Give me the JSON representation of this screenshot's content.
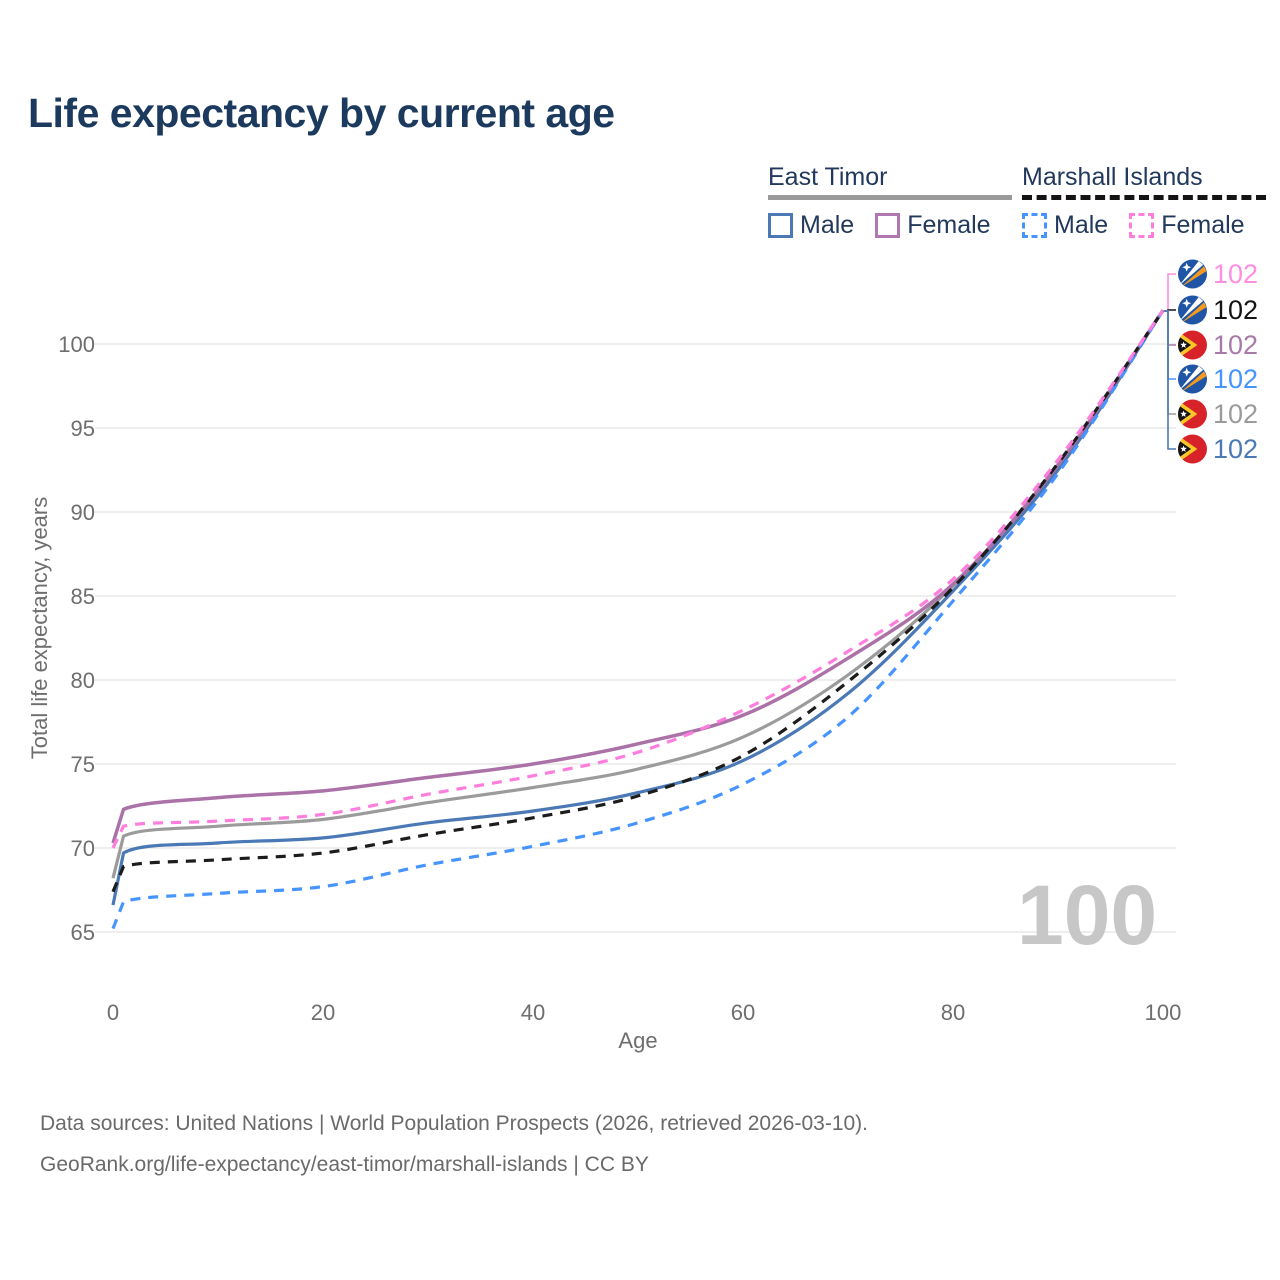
{
  "title": "Life expectancy by current age",
  "legend": {
    "groups": [
      {
        "name": "East Timor",
        "line_style": "solid",
        "line_color": "#9a9a9a",
        "items": [
          {
            "label": "Male",
            "color": "#4a79b5",
            "style": "solid"
          },
          {
            "label": "Female",
            "color": "#b078b0",
            "style": "solid"
          }
        ]
      },
      {
        "name": "Marshall Islands",
        "line_style": "dashed",
        "line_color": "#141414",
        "items": [
          {
            "label": "Male",
            "color": "#4594ff",
            "style": "dashed"
          },
          {
            "label": "Female",
            "color": "#ff7edd",
            "style": "dashed"
          }
        ]
      }
    ]
  },
  "chart_data": {
    "type": "line",
    "title": "Life expectancy by current age",
    "xlabel": "Age",
    "ylabel": "Total life expectancy, years",
    "x_ticks": [
      0,
      20,
      40,
      60,
      80,
      100
    ],
    "y_ticks": [
      65,
      70,
      75,
      80,
      85,
      90,
      95,
      100
    ],
    "xlim": [
      0,
      100
    ],
    "ylim": [
      63,
      103
    ],
    "grid": "horizontal",
    "legend_position": "top-right",
    "watermark": "100",
    "x": [
      0,
      1,
      10,
      20,
      30,
      40,
      50,
      60,
      70,
      80,
      90,
      100
    ],
    "series": [
      {
        "name": "East Timor Total",
        "country": "East Timor",
        "sex": "total",
        "color": "#9b9b9b",
        "dash": "solid",
        "width": 3.2,
        "values": [
          68.2,
          70.7,
          71.3,
          71.7,
          72.7,
          73.6,
          74.7,
          76.6,
          80.3,
          85.6,
          92.7,
          102
        ]
      },
      {
        "name": "East Timor Male",
        "country": "East Timor",
        "sex": "male",
        "color": "#4a79b5",
        "dash": "solid",
        "width": 3.2,
        "values": [
          66.6,
          69.7,
          70.3,
          70.6,
          71.5,
          72.2,
          73.3,
          75.2,
          79.2,
          85.3,
          92.5,
          102
        ]
      },
      {
        "name": "East Timor Female",
        "country": "East Timor",
        "sex": "female",
        "color": "#ab72a8",
        "dash": "solid",
        "width": 3.5,
        "values": [
          70.3,
          72.3,
          73.0,
          73.4,
          74.2,
          75.0,
          76.2,
          77.9,
          81.3,
          85.7,
          92.8,
          102
        ]
      },
      {
        "name": "Marshall Islands Male",
        "country": "Marshall Islands",
        "sex": "male",
        "color": "#4594ff",
        "dash": "dashed",
        "width": 3.2,
        "values": [
          65.2,
          66.8,
          67.3,
          67.7,
          69.0,
          70.1,
          71.5,
          73.8,
          77.8,
          84.7,
          92.3,
          102
        ]
      },
      {
        "name": "Marshall Islands Total",
        "country": "Marshall Islands",
        "sex": "total",
        "color": "#1c1c1c",
        "dash": "dashed",
        "width": 3.2,
        "values": [
          67.4,
          68.9,
          69.3,
          69.7,
          70.8,
          71.8,
          73.1,
          75.5,
          79.9,
          85.5,
          92.9,
          102
        ]
      },
      {
        "name": "Marshall Islands Female",
        "country": "Marshall Islands",
        "sex": "female",
        "color": "#ff7edd",
        "dash": "dashed",
        "width": 3.2,
        "values": [
          70.0,
          71.3,
          71.6,
          72.0,
          73.2,
          74.3,
          75.7,
          78.2,
          81.7,
          86.0,
          93.1,
          102
        ]
      }
    ],
    "end_labels": [
      {
        "flag": "marshall-islands",
        "series": "Marshall Islands Female",
        "value": "102",
        "color": "#ff8ee0"
      },
      {
        "flag": "marshall-islands",
        "series": "Marshall Islands Total",
        "value": "102",
        "color": "#141414"
      },
      {
        "flag": "east-timor",
        "series": "East Timor Female",
        "value": "102",
        "color": "#a87aa8"
      },
      {
        "flag": "marshall-islands",
        "series": "Marshall Islands Male",
        "value": "102",
        "color": "#4594ff"
      },
      {
        "flag": "east-timor",
        "series": "East Timor Total",
        "value": "102",
        "color": "#9b9b9b"
      },
      {
        "flag": "east-timor",
        "series": "East Timor Male",
        "value": "102",
        "color": "#4a79b5"
      }
    ]
  },
  "footer": {
    "line1": "Data sources: United Nations | World Population Prospects (2026, retrieved 2026-03-10).",
    "line2": "GeoRank.org/life-expectancy/east-timor/marshall-islands | CC BY"
  }
}
